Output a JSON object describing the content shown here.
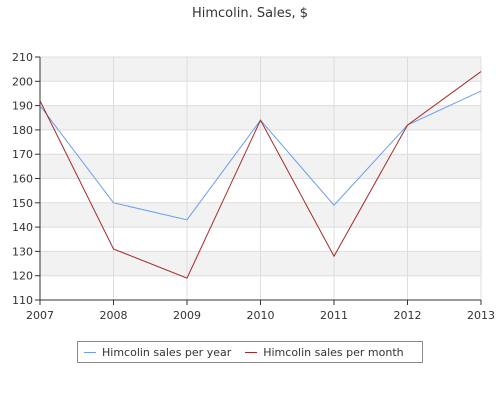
{
  "chart_data": {
    "type": "line",
    "title": "Himcolin. Sales, $",
    "xlabel": "",
    "ylabel": "",
    "x": [
      "2007",
      "2008",
      "2009",
      "2010",
      "2011",
      "2012",
      "2013"
    ],
    "ylim": [
      110,
      210
    ],
    "yticks": [
      110,
      120,
      130,
      140,
      150,
      160,
      170,
      180,
      190,
      200,
      210
    ],
    "grid": true,
    "legend_position": "bottom",
    "series": [
      {
        "name": "Himcolin sales per year",
        "color": "#6d9eeb",
        "values": [
          190,
          150,
          143,
          184,
          149,
          182,
          196
        ]
      },
      {
        "name": "Himcolin sales per month",
        "color": "#a52a2a",
        "values": [
          192,
          131,
          119,
          184,
          128,
          182,
          204
        ]
      }
    ]
  }
}
